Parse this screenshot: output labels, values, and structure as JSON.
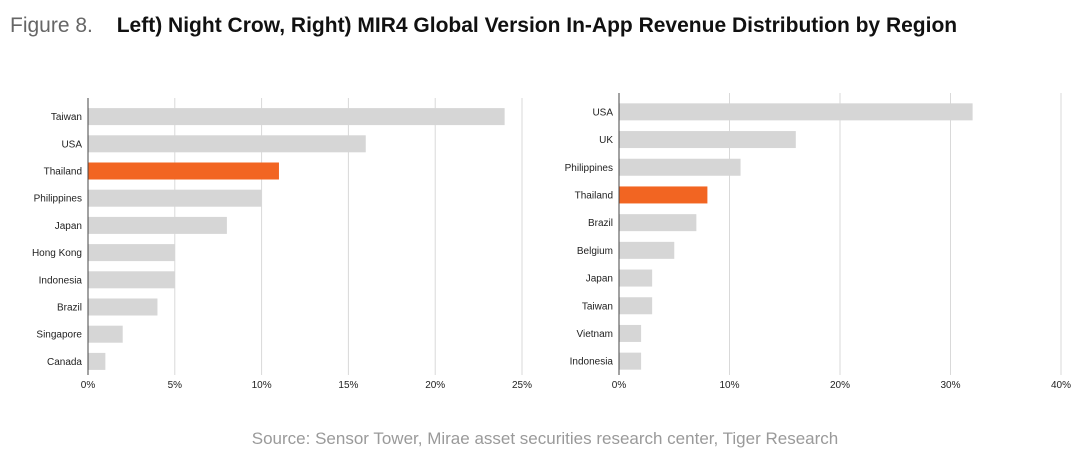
{
  "figure": {
    "label": "Figure 8.",
    "title": "Left) Night Crow, Right) MIR4 Global Version In-App Revenue Distribution by Region"
  },
  "source": "Source: Sensor Tower, Mirae asset securities research center, Tiger Research",
  "colors": {
    "bar": "#d6d6d6",
    "highlight": "#f26522",
    "grid": "#d9d9d9",
    "axis": "#444444"
  },
  "chart_data": [
    {
      "type": "bar",
      "orientation": "horizontal",
      "title": "Night Crow",
      "categories": [
        "Taiwan",
        "USA",
        "Thailand",
        "Philippines",
        "Japan",
        "Hong Kong",
        "Indonesia",
        "Brazil",
        "Singapore",
        "Canada"
      ],
      "values": [
        24,
        16,
        11,
        10,
        8,
        5,
        5,
        4,
        2,
        1
      ],
      "highlight": "Thailand",
      "xlim": [
        0,
        25
      ],
      "ticks": [
        0,
        5,
        10,
        15,
        20,
        25
      ],
      "tick_labels": [
        "0%",
        "5%",
        "10%",
        "15%",
        "20%",
        "25%"
      ],
      "grid": true
    },
    {
      "type": "bar",
      "orientation": "horizontal",
      "title": "MIR4 Global",
      "categories": [
        "USA",
        "UK",
        "Philippines",
        "Thailand",
        "Brazil",
        "Belgium",
        "Japan",
        "Taiwan",
        "Vietnam",
        "Indonesia"
      ],
      "values": [
        32,
        16,
        11,
        8,
        7,
        5,
        3,
        3,
        2,
        2
      ],
      "highlight": "Thailand",
      "xlim": [
        0,
        40
      ],
      "ticks": [
        0,
        10,
        20,
        30,
        40
      ],
      "tick_labels": [
        "0%",
        "10%",
        "20%",
        "30%",
        "40%"
      ],
      "grid": true
    }
  ]
}
